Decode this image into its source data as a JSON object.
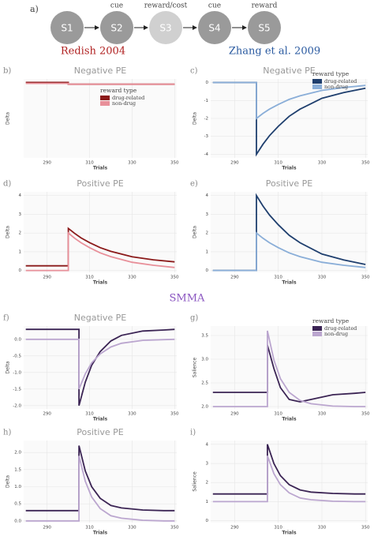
{
  "diagram": {
    "label": "a)",
    "nodes": [
      "S1",
      "S2",
      "S3",
      "S4",
      "S5"
    ],
    "edges": [
      "cue",
      "reward/cost",
      "cue",
      "reward"
    ]
  },
  "headings": [
    "Redish 2004",
    "Zhang et al. 2009",
    "SMMA"
  ],
  "chart_data": [
    {
      "type": "line",
      "panel": "b)",
      "title": "Negative PE",
      "x_label": "Trials",
      "y_label": "Delta",
      "x": [
        280,
        300,
        300,
        303,
        306,
        310,
        315,
        320,
        330,
        340,
        350
      ],
      "xlim": [
        279,
        351
      ],
      "xticks": [
        290,
        310,
        330,
        350
      ],
      "ylim": [
        -4.2,
        0.3
      ],
      "legend": "center-right",
      "legend_title": "reward type",
      "series": [
        {
          "name": "drug-related",
          "color": "#8b1a1a",
          "values": [
            0.1,
            0.1,
            0,
            0,
            0,
            0,
            0,
            0,
            0,
            0,
            0
          ]
        },
        {
          "name": "non-drug",
          "color": "#e8909a",
          "values": [
            0.05,
            0.05,
            0,
            0,
            0,
            0,
            0,
            0,
            0,
            0,
            0
          ]
        }
      ]
    },
    {
      "type": "line",
      "panel": "c)",
      "title": "Negative PE",
      "x_label": "Trials",
      "y_label": "Delta",
      "x": [
        280,
        300,
        300,
        303,
        306,
        310,
        315,
        320,
        330,
        340,
        350
      ],
      "xlim": [
        279,
        351
      ],
      "xticks": [
        290,
        310,
        330,
        350
      ],
      "ylim": [
        -4.2,
        0.2
      ],
      "yticks": [
        0,
        -1,
        -2,
        -3,
        -4
      ],
      "legend": "top-right",
      "legend_title": "reward type",
      "series": [
        {
          "name": "drug-related",
          "color": "#1f3f6e",
          "values": [
            0,
            0,
            -4,
            -3.44,
            -2.96,
            -2.44,
            -1.88,
            -1.48,
            -0.88,
            -0.56,
            -0.32
          ]
        },
        {
          "name": "non-drug",
          "color": "#8aaed8",
          "values": [
            0,
            0,
            -2,
            -1.72,
            -1.48,
            -1.22,
            -0.94,
            -0.74,
            -0.44,
            -0.28,
            -0.16
          ]
        }
      ]
    },
    {
      "type": "line",
      "panel": "d)",
      "title": "Positive PE",
      "x_label": "Trials",
      "y_label": "Delta",
      "x": [
        280,
        300,
        300,
        303,
        306,
        310,
        315,
        320,
        330,
        340,
        350
      ],
      "xlim": [
        279,
        351
      ],
      "xticks": [
        290,
        310,
        330,
        350
      ],
      "ylim": [
        -0.1,
        4.2
      ],
      "yticks": [
        0,
        1,
        2,
        3,
        4
      ],
      "series": [
        {
          "color": "#8b1a1a",
          "values": [
            0.25,
            0.25,
            2.25,
            1.98,
            1.74,
            1.49,
            1.22,
            1.02,
            0.73,
            0.57,
            0.46
          ]
        },
        {
          "color": "#e8909a",
          "values": [
            0,
            0,
            2,
            1.72,
            1.48,
            1.22,
            0.94,
            0.74,
            0.44,
            0.28,
            0.16
          ]
        }
      ]
    },
    {
      "type": "line",
      "panel": "e)",
      "title": "Positive PE",
      "x_label": "Trials",
      "y_label": "Delta",
      "x": [
        280,
        300,
        300,
        303,
        306,
        310,
        315,
        320,
        330,
        340,
        350
      ],
      "xlim": [
        279,
        351
      ],
      "xticks": [
        290,
        310,
        330,
        350
      ],
      "ylim": [
        -0.1,
        4.2
      ],
      "yticks": [
        0,
        1,
        2,
        3,
        4
      ],
      "series": [
        {
          "color": "#1f3f6e",
          "values": [
            0,
            0,
            4,
            3.44,
            2.96,
            2.44,
            1.88,
            1.48,
            0.88,
            0.56,
            0.32
          ]
        },
        {
          "color": "#8aaed8",
          "values": [
            0,
            0,
            2,
            1.72,
            1.48,
            1.22,
            0.94,
            0.74,
            0.44,
            0.28,
            0.16
          ]
        }
      ]
    },
    {
      "type": "line",
      "panel": "f)",
      "title": "Negative PE",
      "x_label": "Trials",
      "y_label": "Delta",
      "x": [
        280,
        305,
        305,
        308,
        311,
        315,
        320,
        325,
        335,
        345,
        350
      ],
      "xlim": [
        279,
        351
      ],
      "xticks": [
        290,
        310,
        330,
        350
      ],
      "ylim": [
        -2.1,
        0.4
      ],
      "yticks": [
        {
          "value": 0,
          "label": "0.0"
        },
        -0.5,
        {
          "value": -1,
          "label": "-1.0"
        },
        -1.5,
        {
          "value": -2,
          "label": "-2.0"
        }
      ],
      "series": [
        {
          "color": "#3b2454",
          "values": [
            0.3,
            0.3,
            -2.0,
            -1.29,
            -0.78,
            -0.37,
            -0.05,
            0.12,
            0.25,
            0.28,
            0.3
          ]
        },
        {
          "color": "#bba6cf",
          "values": [
            0,
            0,
            -1.5,
            -1.04,
            -0.71,
            -0.44,
            -0.23,
            -0.12,
            -0.03,
            -0.01,
            0
          ]
        }
      ]
    },
    {
      "type": "line",
      "panel": "g)",
      "x_label": "Trials",
      "y_label": "Salience",
      "x": [
        280,
        305,
        305,
        308,
        311,
        315,
        320,
        325,
        335,
        345,
        350
      ],
      "xlim": [
        279,
        351
      ],
      "xticks": [
        290,
        310,
        330,
        350
      ],
      "ylim": [
        1.95,
        3.7
      ],
      "yticks": [
        {
          "value": 2,
          "label": "2.0"
        },
        2.5,
        {
          "value": 3,
          "label": "3.0"
        },
        3.5
      ],
      "legend": "top-right",
      "legend_title": "reward type",
      "series": [
        {
          "name": "drug-related",
          "color": "#3b2454",
          "values": [
            2.3,
            2.3,
            3.3,
            2.8,
            2.4,
            2.15,
            2.1,
            2.15,
            2.25,
            2.28,
            2.3
          ]
        },
        {
          "name": "non-drug",
          "color": "#bba6cf",
          "values": [
            2.0,
            2.0,
            3.6,
            2.98,
            2.59,
            2.3,
            2.13,
            2.06,
            2.01,
            2.0,
            2.0
          ]
        }
      ]
    },
    {
      "type": "line",
      "panel": "h)",
      "title": "Positive PE",
      "x_label": "Trials",
      "y_label": "Delta",
      "x": [
        280,
        305,
        305,
        308,
        311,
        315,
        320,
        325,
        335,
        345,
        350
      ],
      "xlim": [
        279,
        351
      ],
      "xticks": [
        290,
        310,
        330,
        350
      ],
      "ylim": [
        -0.05,
        2.35
      ],
      "yticks": [
        {
          "value": 0,
          "label": "0.0"
        },
        0.5,
        {
          "value": 1,
          "label": "1.0"
        },
        1.5,
        {
          "value": 2,
          "label": "2.0"
        }
      ],
      "series": [
        {
          "color": "#3b2454",
          "values": [
            0.3,
            0.3,
            2.2,
            1.46,
            1.0,
            0.66,
            0.45,
            0.38,
            0.32,
            0.3,
            0.3
          ]
        },
        {
          "color": "#bba6cf",
          "values": [
            0,
            0,
            1.9,
            1.16,
            0.7,
            0.36,
            0.15,
            0.08,
            0.02,
            0,
            0
          ]
        }
      ]
    },
    {
      "type": "line",
      "panel": "i)",
      "x_label": "Trials",
      "y_label": "Salience",
      "x": [
        280,
        305,
        305,
        308,
        311,
        315,
        320,
        325,
        335,
        345,
        350
      ],
      "xlim": [
        279,
        351
      ],
      "xticks": [
        290,
        310,
        330,
        350
      ],
      "ylim": [
        -0.1,
        4.2
      ],
      "yticks": [
        0,
        1,
        2,
        3,
        4
      ],
      "series": [
        {
          "color": "#3b2454",
          "values": [
            1.4,
            1.4,
            4.0,
            2.99,
            2.36,
            1.89,
            1.61,
            1.5,
            1.43,
            1.4,
            1.4
          ]
        },
        {
          "color": "#bba6cf",
          "values": [
            1.0,
            1.0,
            3.4,
            2.46,
            1.89,
            1.46,
            1.19,
            1.1,
            1.02,
            1.0,
            1.0
          ]
        }
      ]
    }
  ]
}
